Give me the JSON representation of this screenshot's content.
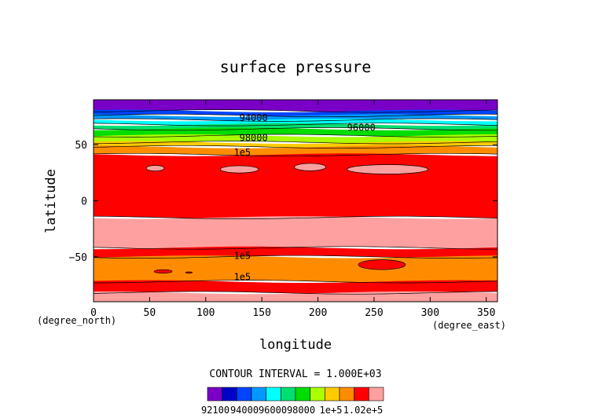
{
  "chart_data": {
    "type": "heatmap",
    "title": "surface pressure",
    "xlabel": "longitude",
    "ylabel": "latitude",
    "x_unit": "(degree_east)",
    "y_unit": "(degree_north)",
    "xlim": [
      0,
      360
    ],
    "ylim": [
      -90,
      90
    ],
    "x_ticks": [
      "0",
      "50",
      "100",
      "150",
      "200",
      "250",
      "300",
      "350"
    ],
    "y_ticks": [
      "50",
      "0",
      "−50"
    ],
    "contour_interval_text": "CONTOUR INTERVAL = 1.000E+03",
    "colorbar": {
      "labels": [
        "92100",
        "94000",
        "96000",
        "98000",
        "1e+5",
        "1.02e+5"
      ],
      "levels": [
        92100,
        93000,
        94000,
        95000,
        96000,
        97000,
        98000,
        99000,
        100000,
        101000,
        102000
      ],
      "colors": [
        "#7a00c8",
        "#0000c8",
        "#0044ff",
        "#0099ff",
        "#00ffff",
        "#00e070",
        "#00dd00",
        "#aaff00",
        "#ffcc00",
        "#ff8c00",
        "#ff0000",
        "#ffa0a0"
      ]
    },
    "bands": [
      {
        "lat": [
          80,
          90
        ],
        "value": "<93000"
      },
      {
        "lat": [
          76,
          80
        ],
        "value": 93500
      },
      {
        "lat": [
          72,
          76
        ],
        "value": 94500
      },
      {
        "lat": [
          68,
          72
        ],
        "value": 95500
      },
      {
        "lat": [
          64,
          68
        ],
        "value": 96500
      },
      {
        "lat": [
          58,
          64
        ],
        "value": 97500
      },
      {
        "lat": [
          52,
          58
        ],
        "value": 98500
      },
      {
        "lat": [
          48,
          52
        ],
        "value": 99500
      },
      {
        "lat": [
          41,
          48
        ],
        "value": 100500
      },
      {
        "lat": [
          -15,
          41
        ],
        "value": 101500
      },
      {
        "lat": [
          -42,
          -15
        ],
        "value": ">102000"
      },
      {
        "lat": [
          -50,
          -42
        ],
        "value": 101500
      },
      {
        "lat": [
          -72,
          -50
        ],
        "value": 100500
      },
      {
        "lat": [
          -82,
          -72
        ],
        "value": 101500
      },
      {
        "lat": [
          -90,
          -82
        ],
        "value": ">102000"
      }
    ],
    "contour_labels": [
      "94000",
      "96000",
      "98000",
      "1e5",
      "1e5",
      "1e5"
    ]
  }
}
